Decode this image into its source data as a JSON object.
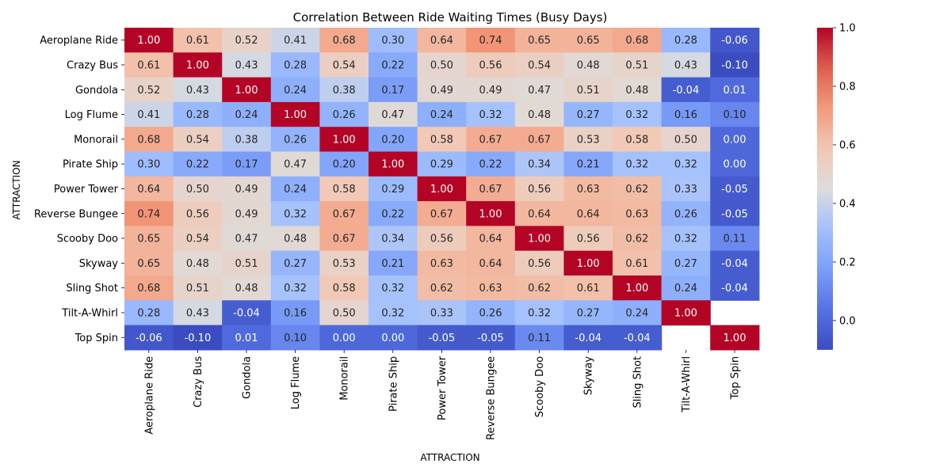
{
  "chart_data": {
    "type": "heatmap",
    "title": "Correlation Between Ride Waiting Times (Busy Days)",
    "xlabel": "ATTRACTION",
    "ylabel": "ATTRACTION",
    "categories": [
      "Aeroplane Ride",
      "Crazy Bus",
      "Gondola",
      "Log Flume",
      "Monorail",
      "Pirate Ship",
      "Power Tower",
      "Reverse Bungee",
      "Scooby Doo",
      "Skyway",
      "Sling Shot",
      "Tilt-A-Whirl",
      "Top Spin"
    ],
    "values": [
      [
        1.0,
        0.61,
        0.52,
        0.41,
        0.68,
        0.3,
        0.64,
        0.74,
        0.65,
        0.65,
        0.68,
        0.28,
        -0.06
      ],
      [
        0.61,
        1.0,
        0.43,
        0.28,
        0.54,
        0.22,
        0.5,
        0.56,
        0.54,
        0.48,
        0.51,
        0.43,
        -0.1
      ],
      [
        0.52,
        0.43,
        1.0,
        0.24,
        0.38,
        0.17,
        0.49,
        0.49,
        0.47,
        0.51,
        0.48,
        -0.04,
        0.01
      ],
      [
        0.41,
        0.28,
        0.24,
        1.0,
        0.26,
        0.47,
        0.24,
        0.32,
        0.48,
        0.27,
        0.32,
        0.16,
        0.1
      ],
      [
        0.68,
        0.54,
        0.38,
        0.26,
        1.0,
        0.2,
        0.58,
        0.67,
        0.67,
        0.53,
        0.58,
        0.5,
        0.0
      ],
      [
        0.3,
        0.22,
        0.17,
        0.47,
        0.2,
        1.0,
        0.29,
        0.22,
        0.34,
        0.21,
        0.32,
        0.32,
        0.0
      ],
      [
        0.64,
        0.5,
        0.49,
        0.24,
        0.58,
        0.29,
        1.0,
        0.67,
        0.56,
        0.63,
        0.62,
        0.33,
        -0.05
      ],
      [
        0.74,
        0.56,
        0.49,
        0.32,
        0.67,
        0.22,
        0.67,
        1.0,
        0.64,
        0.64,
        0.63,
        0.26,
        -0.05
      ],
      [
        0.65,
        0.54,
        0.47,
        0.48,
        0.67,
        0.34,
        0.56,
        0.64,
        1.0,
        0.56,
        0.62,
        0.32,
        0.11
      ],
      [
        0.65,
        0.48,
        0.51,
        0.27,
        0.53,
        0.21,
        0.63,
        0.64,
        0.56,
        1.0,
        0.61,
        0.27,
        -0.04
      ],
      [
        0.68,
        0.51,
        0.48,
        0.32,
        0.58,
        0.32,
        0.62,
        0.63,
        0.62,
        0.61,
        1.0,
        0.24,
        -0.04
      ],
      [
        0.28,
        0.43,
        -0.04,
        0.16,
        0.5,
        0.32,
        0.33,
        0.26,
        0.32,
        0.27,
        0.24,
        1.0,
        null
      ],
      [
        -0.06,
        -0.1,
        0.01,
        0.1,
        0.0,
        0.0,
        -0.05,
        -0.05,
        0.11,
        -0.04,
        -0.04,
        null,
        1.0
      ]
    ],
    "value_format": "2 decimals",
    "colormap": "coolwarm",
    "colorbar": {
      "range": [
        -0.1,
        1.0
      ],
      "ticks": [
        "0.0",
        "0.2",
        "0.4",
        "0.6",
        "0.8",
        "1.0"
      ]
    },
    "grid": false,
    "legend": "colorbar-right"
  }
}
